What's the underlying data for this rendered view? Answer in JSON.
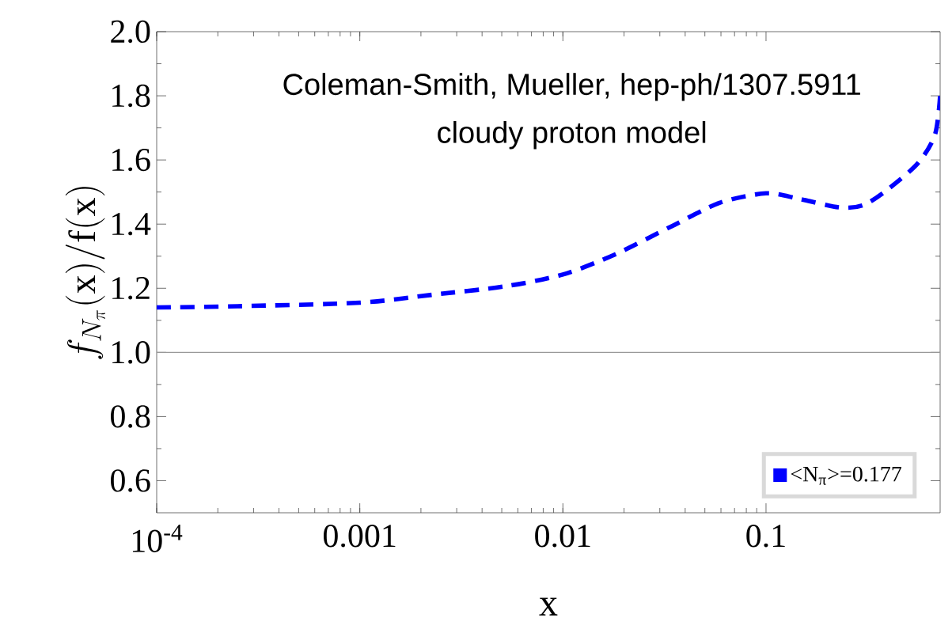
{
  "chart_data": {
    "type": "line",
    "xlabel": "x",
    "ylabel": "f_{N_\\pi}(\\mathrm{x})/\\mathrm{f}(\\mathrm{x})",
    "log": "x",
    "xlim": [
      0.0001,
      0.72
    ],
    "ylim": [
      0.5,
      2.0
    ],
    "xticks": [
      {
        "value": 0.0001,
        "label": "10$^{-4}$"
      },
      0.001,
      0.01,
      0.1
    ],
    "yticks": [
      0.6,
      0.8,
      {
        "value": 1,
        "label": "1.0"
      },
      1.2,
      1.4,
      1.6,
      1.8,
      {
        "value": 2,
        "label": "2.0"
      }
    ],
    "x": [
      0.0001,
      0.00025,
      0.001,
      0.0023,
      0.0052,
      0.01,
      0.018,
      0.034,
      0.059,
      0.1,
      0.145,
      0.23,
      0.3,
      0.39,
      0.56,
      0.68,
      0.72
    ],
    "series": [
      {
        "name": "<N$_{π}$>=0.177",
        "color": "#0000ff",
        "values": [
          1.14,
          1.144,
          1.155,
          1.18,
          1.206,
          1.243,
          1.305,
          1.392,
          1.466,
          1.496,
          1.479,
          1.452,
          1.459,
          1.504,
          1.59,
          1.68,
          1.8
        ]
      }
    ],
    "line_style": "dashed",
    "marker": "none",
    "legend": "bottom right",
    "grid": false,
    "ref_lines": [
      {
        "axis": "y",
        "value": 1.0,
        "color": "#999999"
      }
    ],
    "annotations": [
      "Coleman-Smith, Mueller, hep-ph/1307.5911",
      "cloudy proton model"
    ]
  }
}
